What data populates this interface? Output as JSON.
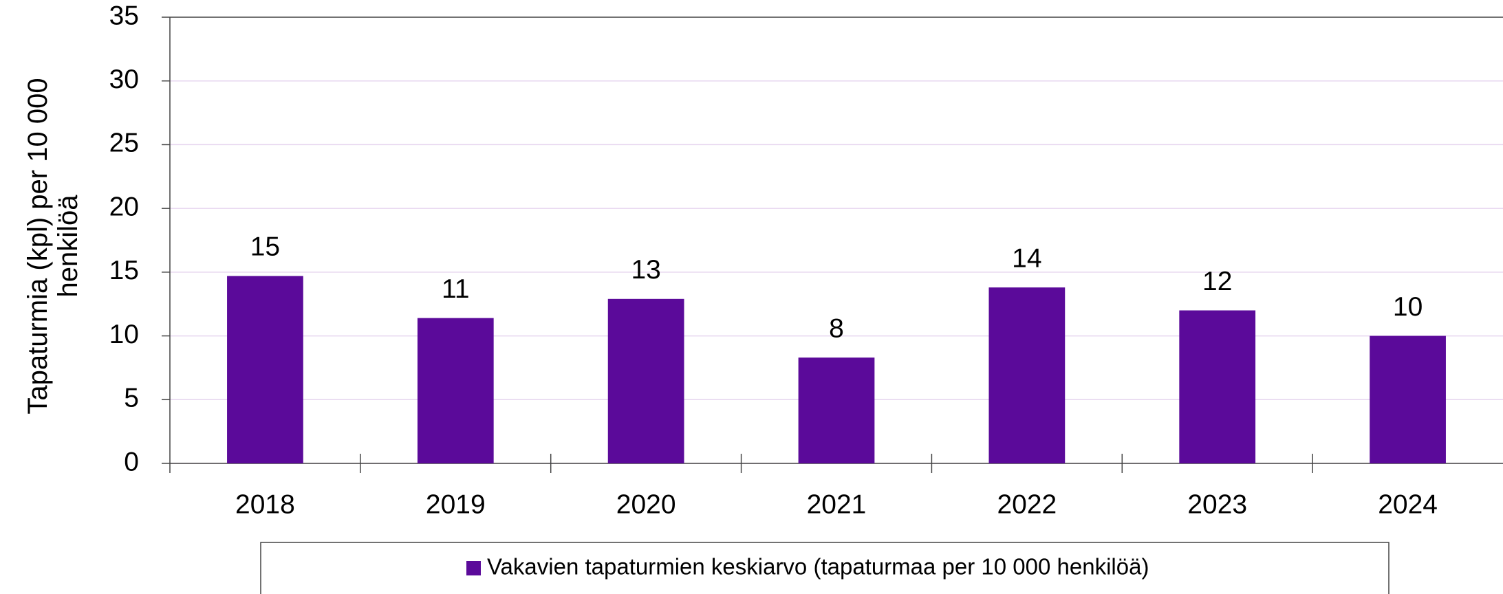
{
  "chart_data": {
    "type": "bar",
    "y_label": "Tapaturmia (kpl) per 10 000 henkilöä",
    "categories": [
      "2018",
      "2019",
      "2020",
      "2021",
      "2022",
      "2023",
      "2024"
    ],
    "series": [
      {
        "name": "Vakavien tapaturmien keskiarvo (tapaturmaa per 10 000 henkilöä)",
        "color": "#5b0a9a",
        "values": [
          14.7,
          11.4,
          12.9,
          8.3,
          13.8,
          12.0,
          10.0
        ],
        "value_labels": [
          "15",
          "11",
          "13",
          "8",
          "14",
          "12",
          "10"
        ]
      }
    ],
    "ylim": [
      0,
      35
    ],
    "yticks": [
      0,
      5,
      10,
      15,
      20,
      25,
      30,
      35
    ],
    "grid": true,
    "grid_color": "#e6d5ef"
  }
}
